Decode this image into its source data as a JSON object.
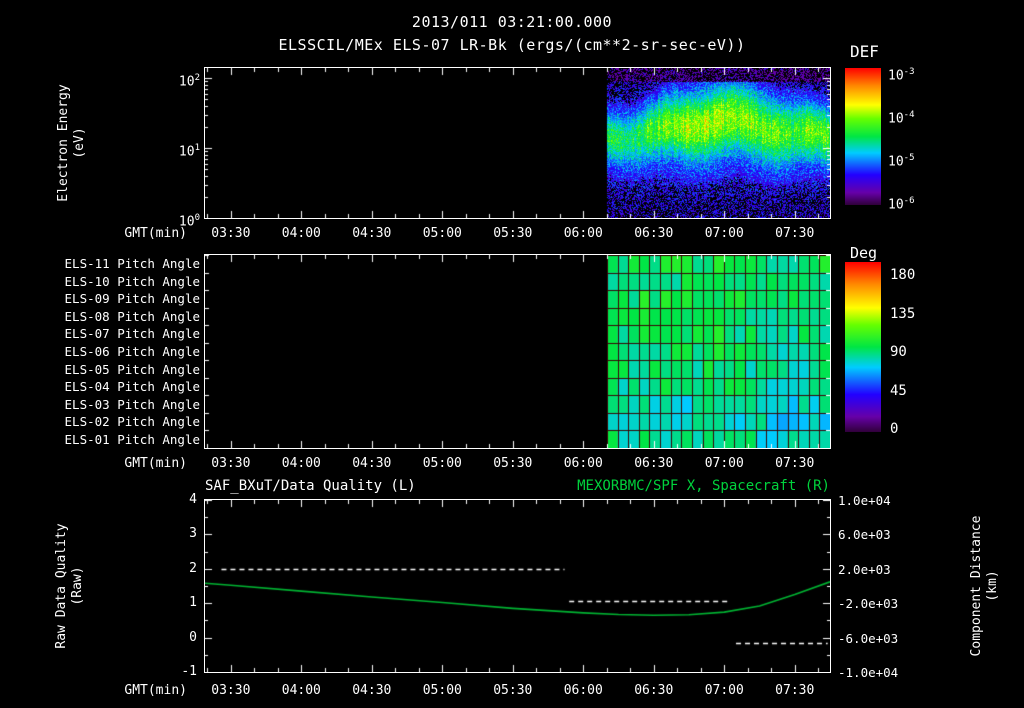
{
  "header": {
    "title": "2013/011 03:21:00.000",
    "subtitle": "ELSSCIL/MEx ELS-07 LR-Bk  (ergs/(cm**2-sr-sec-eV))"
  },
  "axis": {
    "gmt_label": "GMT(min)",
    "time_ticks": [
      "03:30",
      "04:00",
      "04:30",
      "05:00",
      "05:30",
      "06:00",
      "06:30",
      "07:00",
      "07:30"
    ]
  },
  "colors": {
    "accent_green": "#00d23c",
    "curve_green": "#00b432",
    "axis_white": "#ffffff",
    "background": "#000000"
  },
  "spectrogram": {
    "ylabel1": "Electron Energy",
    "ylabel2": "(eV)",
    "yticks": [
      {
        "b": "10",
        "e": "2"
      },
      {
        "b": "10",
        "e": "1"
      },
      {
        "b": "10",
        "e": "0"
      }
    ],
    "colorbar_title": "DEF",
    "colorbar_ticks": [
      {
        "b": "10",
        "e": "-3"
      },
      {
        "b": "10",
        "e": "-4"
      },
      {
        "b": "10",
        "e": "-5"
      },
      {
        "b": "10",
        "e": "-6"
      }
    ]
  },
  "pitch": {
    "rows": [
      "ELS-11 Pitch Angle",
      "ELS-10 Pitch Angle",
      "ELS-09 Pitch Angle",
      "ELS-08 Pitch Angle",
      "ELS-07 Pitch Angle",
      "ELS-06 Pitch Angle",
      "ELS-05 Pitch Angle",
      "ELS-04 Pitch Angle",
      "ELS-03 Pitch Angle",
      "ELS-02 Pitch Angle",
      "ELS-01 Pitch Angle"
    ],
    "colorbar_title": "Deg",
    "colorbar_ticks": [
      "180",
      "135",
      "90",
      "45",
      "0"
    ]
  },
  "timeseries": {
    "title_left": "SAF_BXuT/Data Quality (L)",
    "title_right": "MEXORBMC/SPF X, Spacecraft (R)",
    "ylabel_left1": "Raw Data Quality",
    "ylabel_left2": "(Raw)",
    "ylabel_right1": "Component Distance",
    "ylabel_right2": "(km)",
    "left_ticks": [
      "4",
      "3",
      "2",
      "1",
      "0",
      "-1"
    ],
    "right_ticks": [
      "1.0e+04",
      "6.0e+03",
      "2.0e+03",
      "-2.0e+03",
      "-6.0e+03",
      "-1.0e+04"
    ]
  },
  "chart_data": [
    {
      "type": "heatmap",
      "panel": "electron-energy-spectrogram",
      "title": "ELSSCIL/MEx ELS-07 LR-Bk",
      "units": "ergs/(cm**2-sr-sec-eV)",
      "xlabel": "GMT(min)",
      "ylabel": "Electron Energy (eV)",
      "x_range": [
        "03:19",
        "07:45"
      ],
      "x_ticks": [
        "03:30",
        "04:00",
        "04:30",
        "05:00",
        "05:30",
        "06:00",
        "06:30",
        "07:00",
        "07:30"
      ],
      "y_scale": "log",
      "y_range_ev": [
        1,
        140
      ],
      "colorbar": {
        "title": "DEF",
        "scale": "log",
        "range": [
          1e-06,
          0.001
        ],
        "ticks": [
          0.001,
          0.0001,
          1e-05,
          1e-06
        ]
      },
      "coverage": {
        "start": "06:10",
        "end": "07:45",
        "note": "no data plotted before 06:10"
      },
      "features": {
        "enhanced_band_ev": [
          4,
          50
        ],
        "peak_flux": 0.0001,
        "background_flux": 1e-06,
        "description": "broadband electron flux enhancement 06:10-07:45, brightest (yellow-green) near 10-30 eV around 06:30-07:10, purple/blue noise background, dark above 100 eV"
      }
    },
    {
      "type": "heatmap",
      "panel": "pitch-angle-channels",
      "rows": [
        "ELS-11",
        "ELS-10",
        "ELS-09",
        "ELS-08",
        "ELS-07",
        "ELS-06",
        "ELS-05",
        "ELS-04",
        "ELS-03",
        "ELS-02",
        "ELS-01"
      ],
      "value_units": "Deg",
      "colorbar": {
        "title": "Deg",
        "range": [
          0,
          180
        ],
        "ticks": [
          180,
          135,
          90,
          45,
          0
        ]
      },
      "coverage": {
        "start": "06:10",
        "end": "07:45"
      },
      "grid_columns": 21,
      "typical_values_deg": {
        "upper_channels": 90,
        "lower_channels": 75
      },
      "description": "pitch angles mostly 70-100 deg (green) with cyan patches near 60-70 deg in lower channels"
    },
    {
      "type": "line",
      "panel": "data-quality-and-spacecraft-distance",
      "xlabel": "GMT(min)",
      "x_range": [
        "03:19",
        "07:45"
      ],
      "x_ticks": [
        "03:30",
        "04:00",
        "04:30",
        "05:00",
        "05:30",
        "06:00",
        "06:30",
        "07:00",
        "07:30"
      ],
      "left_axis": {
        "label": "Raw Data Quality (Raw)",
        "range": [
          -1,
          4
        ],
        "ticks": [
          4,
          3,
          2,
          1,
          0,
          -1
        ]
      },
      "right_axis": {
        "label": "Component Distance (km)",
        "range": [
          -10000,
          10000
        ],
        "ticks": [
          10000,
          6000,
          2000,
          -2000,
          -6000,
          -10000
        ]
      },
      "series": [
        {
          "name": "SAF_BXuT/Data Quality (L)",
          "axis": "left",
          "style": "dashed",
          "color": "#ffffff",
          "segments": [
            {
              "start": "03:26",
              "end": "05:52",
              "value": 2.0
            },
            {
              "start": "05:54",
              "end": "07:02",
              "value": 1.05
            },
            {
              "start": "07:05",
              "end": "07:44",
              "value": -0.15
            }
          ]
        },
        {
          "name": "MEXORBMC/SPF X, Spacecraft (R)",
          "axis": "right",
          "style": "solid",
          "color": "#00b432",
          "x": [
            "03:19",
            "03:30",
            "04:00",
            "04:30",
            "05:00",
            "05:30",
            "06:00",
            "06:15",
            "06:30",
            "06:45",
            "07:00",
            "07:15",
            "07:30",
            "07:45"
          ],
          "y_km": [
            320,
            80,
            -600,
            -1280,
            -1920,
            -2600,
            -3120,
            -3320,
            -3400,
            -3340,
            -3040,
            -2320,
            -1000,
            480
          ]
        }
      ]
    }
  ]
}
